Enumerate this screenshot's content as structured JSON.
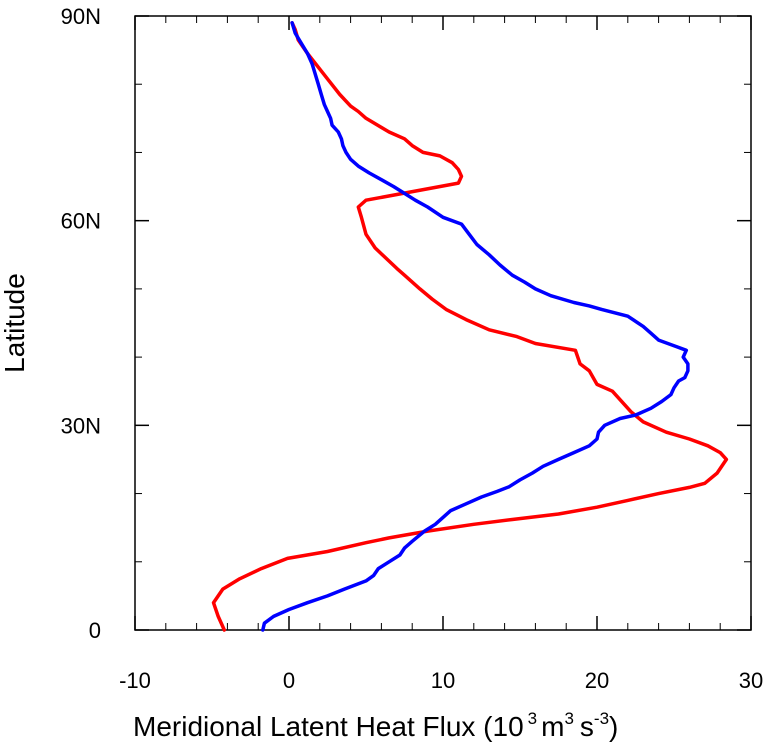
{
  "chart_data": {
    "type": "line",
    "title": "",
    "xlabel": {
      "main": "Meridional Latent Heat Flux (10",
      "sup1": "3",
      "mid1": "m",
      "sup2": "3",
      "mid2": "s",
      "sup3": "-3",
      "end": ")"
    },
    "ylabel": "Latitude",
    "xlim": [
      -10,
      30
    ],
    "ylim": [
      0,
      90
    ],
    "x_ticks": [
      {
        "value": -10,
        "label": "-10"
      },
      {
        "value": 0,
        "label": "0"
      },
      {
        "value": 10,
        "label": "10"
      },
      {
        "value": 20,
        "label": "20"
      },
      {
        "value": 30,
        "label": "30"
      }
    ],
    "y_ticks": [
      {
        "value": 0,
        "label": "0"
      },
      {
        "value": 30,
        "label": "30N"
      },
      {
        "value": 60,
        "label": "60N"
      },
      {
        "value": 90,
        "label": "90N"
      }
    ],
    "x_minor_step": 2,
    "y_minor_step": 10,
    "grid": false,
    "series": [
      {
        "color": "#ff0000",
        "points": [
          [
            -4.2,
            0
          ],
          [
            -4.6,
            2
          ],
          [
            -4.9,
            4
          ],
          [
            -4.3,
            6
          ],
          [
            -3.2,
            7.5
          ],
          [
            -1.8,
            9
          ],
          [
            -0.1,
            10.5
          ],
          [
            2.5,
            11.5
          ],
          [
            5.0,
            12.8
          ],
          [
            6.5,
            13.5
          ],
          [
            9.0,
            14.5
          ],
          [
            12.0,
            15.5
          ],
          [
            14.5,
            16.2
          ],
          [
            17.5,
            17.0
          ],
          [
            20.0,
            18.0
          ],
          [
            22.0,
            19.0
          ],
          [
            24.0,
            20.0
          ],
          [
            26.0,
            20.9
          ],
          [
            27.0,
            21.5
          ],
          [
            27.8,
            23.0
          ],
          [
            28.4,
            25.0
          ],
          [
            28.0,
            26.0
          ],
          [
            27.2,
            27.0
          ],
          [
            26.0,
            28.0
          ],
          [
            24.5,
            29.0
          ],
          [
            23.0,
            30.5
          ],
          [
            22.2,
            32.0
          ],
          [
            21.0,
            35.0
          ],
          [
            20.0,
            36.0
          ],
          [
            19.5,
            38.0
          ],
          [
            18.9,
            39.0
          ],
          [
            18.6,
            41.0
          ],
          [
            16.0,
            42.0
          ],
          [
            14.8,
            43.0
          ],
          [
            13.0,
            44.0
          ],
          [
            11.5,
            45.5
          ],
          [
            10.2,
            47.0
          ],
          [
            9.3,
            48.5
          ],
          [
            8.5,
            50.0
          ],
          [
            7.5,
            52.0
          ],
          [
            7.0,
            53.0
          ],
          [
            5.6,
            56.0
          ],
          [
            5.0,
            58.0
          ],
          [
            4.7,
            60.5
          ],
          [
            4.5,
            62.0
          ],
          [
            5.0,
            63.0
          ],
          [
            11.0,
            65.5
          ],
          [
            11.2,
            66.5
          ],
          [
            11.0,
            67.5
          ],
          [
            10.6,
            68.5
          ],
          [
            9.8,
            69.5
          ],
          [
            8.7,
            70.0
          ],
          [
            8.0,
            71.0
          ],
          [
            7.5,
            72.0
          ],
          [
            6.5,
            73.0
          ],
          [
            5.0,
            75.0
          ],
          [
            4.5,
            76.0
          ],
          [
            4.0,
            76.8
          ],
          [
            3.3,
            78.5
          ],
          [
            2.6,
            80.5
          ],
          [
            1.9,
            82.5
          ],
          [
            1.2,
            84.5
          ],
          [
            0.6,
            86.5
          ],
          [
            0.4,
            88.0
          ],
          [
            0.2,
            89.0
          ]
        ]
      },
      {
        "color": "#0000ff",
        "points": [
          [
            -1.7,
            0
          ],
          [
            -1.6,
            1
          ],
          [
            -1.0,
            2
          ],
          [
            0.0,
            3
          ],
          [
            1.2,
            4
          ],
          [
            2.5,
            5
          ],
          [
            3.6,
            6
          ],
          [
            5.0,
            7.2
          ],
          [
            5.5,
            8.0
          ],
          [
            5.8,
            9.0
          ],
          [
            6.5,
            10.0
          ],
          [
            7.2,
            11.0
          ],
          [
            7.5,
            12.0
          ],
          [
            8.0,
            13.0
          ],
          [
            8.8,
            14.5
          ],
          [
            9.5,
            15.5
          ],
          [
            10.0,
            16.5
          ],
          [
            10.5,
            17.5
          ],
          [
            11.5,
            18.5
          ],
          [
            12.5,
            19.5
          ],
          [
            13.5,
            20.3
          ],
          [
            14.3,
            21.0
          ],
          [
            15.0,
            22.0
          ],
          [
            15.8,
            23.0
          ],
          [
            16.5,
            24.0
          ],
          [
            17.5,
            25.0
          ],
          [
            18.5,
            26.0
          ],
          [
            19.5,
            27.0
          ],
          [
            20.0,
            28.0
          ],
          [
            20.1,
            29.0
          ],
          [
            20.5,
            30.0
          ],
          [
            21.5,
            31.0
          ],
          [
            22.5,
            31.5
          ],
          [
            23.5,
            32.5
          ],
          [
            24.2,
            33.5
          ],
          [
            24.8,
            34.5
          ],
          [
            25.0,
            35.5
          ],
          [
            25.3,
            36.5
          ],
          [
            25.7,
            37.0
          ],
          [
            25.9,
            38.0
          ],
          [
            25.9,
            39.0
          ],
          [
            25.6,
            40.0
          ],
          [
            25.8,
            41.0
          ],
          [
            25.2,
            41.5
          ],
          [
            24.0,
            42.5
          ],
          [
            23.5,
            43.5
          ],
          [
            23.0,
            44.5
          ],
          [
            22.0,
            46.0
          ],
          [
            20.3,
            47.0
          ],
          [
            19.5,
            47.5
          ],
          [
            18.5,
            48.0
          ],
          [
            17.0,
            49.0
          ],
          [
            16.0,
            50.0
          ],
          [
            15.3,
            51.0
          ],
          [
            14.5,
            52.0
          ],
          [
            13.7,
            53.5
          ],
          [
            13.0,
            55.0
          ],
          [
            12.2,
            56.5
          ],
          [
            11.7,
            58.0
          ],
          [
            11.2,
            59.5
          ],
          [
            10.0,
            60.5
          ],
          [
            9.0,
            62.0
          ],
          [
            8.2,
            63.0
          ],
          [
            7.5,
            64.0
          ],
          [
            6.8,
            65.0
          ],
          [
            6.0,
            66.0
          ],
          [
            5.2,
            67.0
          ],
          [
            4.5,
            68.0
          ],
          [
            4.0,
            69.0
          ],
          [
            3.7,
            70.0
          ],
          [
            3.5,
            71.0
          ],
          [
            3.4,
            72.0
          ],
          [
            3.2,
            73.0
          ],
          [
            2.8,
            74.0
          ],
          [
            2.7,
            75.0
          ],
          [
            2.5,
            76.0
          ],
          [
            2.3,
            77.0
          ],
          [
            2.1,
            78.5
          ],
          [
            1.9,
            80.0
          ],
          [
            1.7,
            81.5
          ],
          [
            1.5,
            83.0
          ],
          [
            1.2,
            84.5
          ],
          [
            0.8,
            86.0
          ],
          [
            0.4,
            87.5
          ],
          [
            0.2,
            89.0
          ]
        ]
      }
    ]
  }
}
